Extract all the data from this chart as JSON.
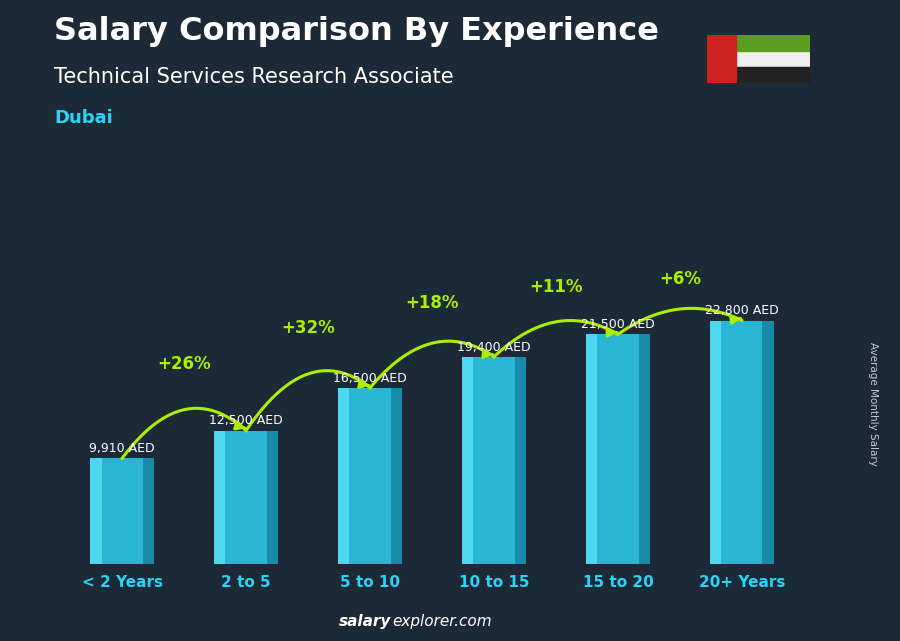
{
  "title": "Salary Comparison By Experience",
  "subtitle": "Technical Services Research Associate",
  "location": "Dubai",
  "categories": [
    "< 2 Years",
    "2 to 5",
    "5 to 10",
    "10 to 15",
    "15 to 20",
    "20+ Years"
  ],
  "values": [
    9910,
    12500,
    16500,
    19400,
    21500,
    22800
  ],
  "labels": [
    "9,910 AED",
    "12,500 AED",
    "16,500 AED",
    "19,400 AED",
    "21,500 AED",
    "22,800 AED"
  ],
  "increases": [
    null,
    "+26%",
    "+32%",
    "+18%",
    "+11%",
    "+6%"
  ],
  "bar_color": "#29b6d4",
  "bar_color_left": "#4dd8f0",
  "bar_color_right": "#1a8aaa",
  "bg_color": "#1c2a38",
  "title_color": "#ffffff",
  "subtitle_color": "#ffffff",
  "location_color": "#29d4f5",
  "label_color": "#ffffff",
  "increase_color": "#aaee00",
  "xtick_color": "#29d4f5",
  "watermark_color": "#ffffff",
  "flag_green": "#5a9e1e",
  "flag_red": "#cc2222",
  "flag_black": "#222222",
  "flag_white": "#eeeeee",
  "ylabel_text": "Average Monthly Salary",
  "ylim": [
    0,
    30000
  ],
  "figsize": [
    9.0,
    6.41
  ],
  "dpi": 100
}
